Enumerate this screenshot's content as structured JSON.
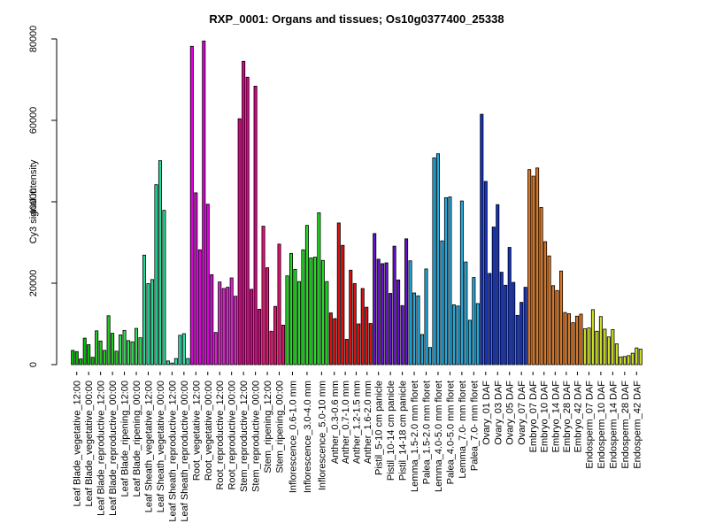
{
  "chart_data": {
    "type": "bar",
    "title": "RXP_0001: Organs and tissues; Os10g0377400_25338",
    "ylabel": "Cy3 signal intensity",
    "xlabel": "",
    "ylim": [
      0,
      80000
    ],
    "yticks": [
      0,
      20000,
      40000,
      60000,
      80000
    ],
    "grid": false,
    "legend": "none",
    "groups": [
      {
        "labels": [
          "Leaf Blade_vegetative_12:00",
          "Leaf Blade_vegetative_00:00"
        ],
        "values": [
          3500,
          3200,
          1400,
          6500,
          4900,
          1800
        ],
        "color": "#00bb00"
      },
      {
        "labels": [
          "Leaf Blade_reproductive_12:00",
          "Leaf Blade_reproductive_00:00"
        ],
        "values": [
          8300,
          5800,
          3500,
          12000,
          7700,
          3300
        ],
        "color": "#22cc22"
      },
      {
        "labels": [
          "Leaf Blade_ripening_12:00",
          "Leaf Blade_ripening_00:00"
        ],
        "values": [
          7300,
          8400,
          5900,
          5600,
          8900,
          6600
        ],
        "color": "#33dd55"
      },
      {
        "labels": [
          "Leaf Sheath_vegetative_12:00",
          "Leaf Sheath_vegetative_00:00"
        ],
        "values": [
          26900,
          19900,
          20900,
          44200,
          50100,
          37900
        ],
        "color": "#22dd99"
      },
      {
        "labels": [
          "Leaf Sheath_reproductive_12:00",
          "Leaf Sheath_reproductive_00:00"
        ],
        "values": [
          900,
          400,
          1500,
          7200,
          7600,
          1500
        ],
        "color": "#33ddaa"
      },
      {
        "labels": [
          "Root_vegetative_12:00",
          "Root_vegetative_00:00"
        ],
        "values": [
          78200,
          42200,
          28200,
          79500,
          39400,
          22100
        ],
        "color": "#dd00dd"
      },
      {
        "labels": [
          "Root_reproductive_12:00",
          "Root_reproductive_00:00"
        ],
        "values": [
          7900,
          20300,
          18700,
          19000,
          21300,
          16800
        ],
        "color": "#dd22cc"
      },
      {
        "labels": [
          "Stem_reproductive_12:00",
          "Stem_reproductive_00:00"
        ],
        "values": [
          60400,
          74500,
          70600,
          18500,
          68400,
          13600
        ],
        "color": "#dd0088"
      },
      {
        "labels": [
          "Stem_ripening_12:00",
          "Stem_ripening_00:00"
        ],
        "values": [
          34000,
          23800,
          8200,
          14300,
          29600,
          9700
        ],
        "color": "#ee1177"
      },
      {
        "labels": [
          "Inflorescence_0.6-1.0 mm",
          "Inflorescence_3.0-4.0 mm",
          "Inflorescence_5.0-10 mm"
        ],
        "values": [
          21800,
          27300,
          23400,
          20400,
          28200,
          34200,
          26200,
          26400,
          37300,
          25600,
          20400
        ],
        "color": "#22dd22"
      },
      {
        "labels": [
          "Anther_0.3-0.6 mm",
          "Anther_0.7-1.0 mm",
          "Anther_1.2-1.5 mm",
          "Anther_1.6-2.0 mm"
        ],
        "values": [
          12700,
          11300,
          34800,
          29300,
          6200,
          23200,
          19900,
          10000,
          18700,
          14100,
          10100
        ],
        "color": "#dd1111"
      },
      {
        "labels": [
          "Pistil_5-10 cm panicle",
          "Pistil_10-14 cm panicle",
          "Pistil_14-18 cm panicle"
        ],
        "values": [
          32200,
          25900,
          24800,
          25000,
          17500,
          29100,
          20800,
          14500,
          30900
        ],
        "color": "#6611cc"
      },
      {
        "labels": [
          "Lemma_1.5-2.0 mm floret",
          "Palea_1.5-2.0 mm floret",
          "Lemma_4.0-5.0 mm floret",
          "Palea_4.0-5.0 mm floret",
          "Lemma_7.0- mm floret",
          "Palea_7.0- mm floret"
        ],
        "values": [
          25500,
          17600,
          16900,
          7400,
          23500,
          4200,
          50800,
          51800,
          30400,
          41000,
          41200,
          14700,
          14400,
          40200,
          25200,
          10900,
          21400,
          15000
        ],
        "color": "#22aadd"
      },
      {
        "labels": [
          "Ovary_01 DAF",
          "Ovary_03 DAF",
          "Ovary_05 DAF",
          "Ovary_07 DAF"
        ],
        "values": [
          61500,
          45000,
          22400,
          33800,
          39300,
          22700,
          19500,
          28800,
          20200,
          12100,
          15300,
          19000
        ],
        "color": "#1133cc"
      },
      {
        "labels": [
          "Embryo_07 DAF",
          "Embryo_10 DAF",
          "Embryo_14 DAF",
          "Embryo_28 DAF",
          "Embryo_42 DAF"
        ],
        "values": [
          47900,
          46300,
          48300,
          38600,
          30200,
          26700,
          19400,
          18200,
          23000,
          12800,
          12500,
          10300,
          11900,
          12400
        ],
        "color": "#dd7722"
      },
      {
        "labels": [
          "Endosperm_07 DAF",
          "Endosperm_10 DAF",
          "Endosperm_14 DAF",
          "Endosperm_28 DAF",
          "Endosperm_42 DAF"
        ],
        "values": [
          8800,
          9000,
          13500,
          8200,
          11800,
          8700,
          6800,
          8600,
          5100,
          1900,
          2000,
          2200,
          2800,
          4100,
          3800
        ],
        "color": "#ccdd22"
      }
    ]
  }
}
